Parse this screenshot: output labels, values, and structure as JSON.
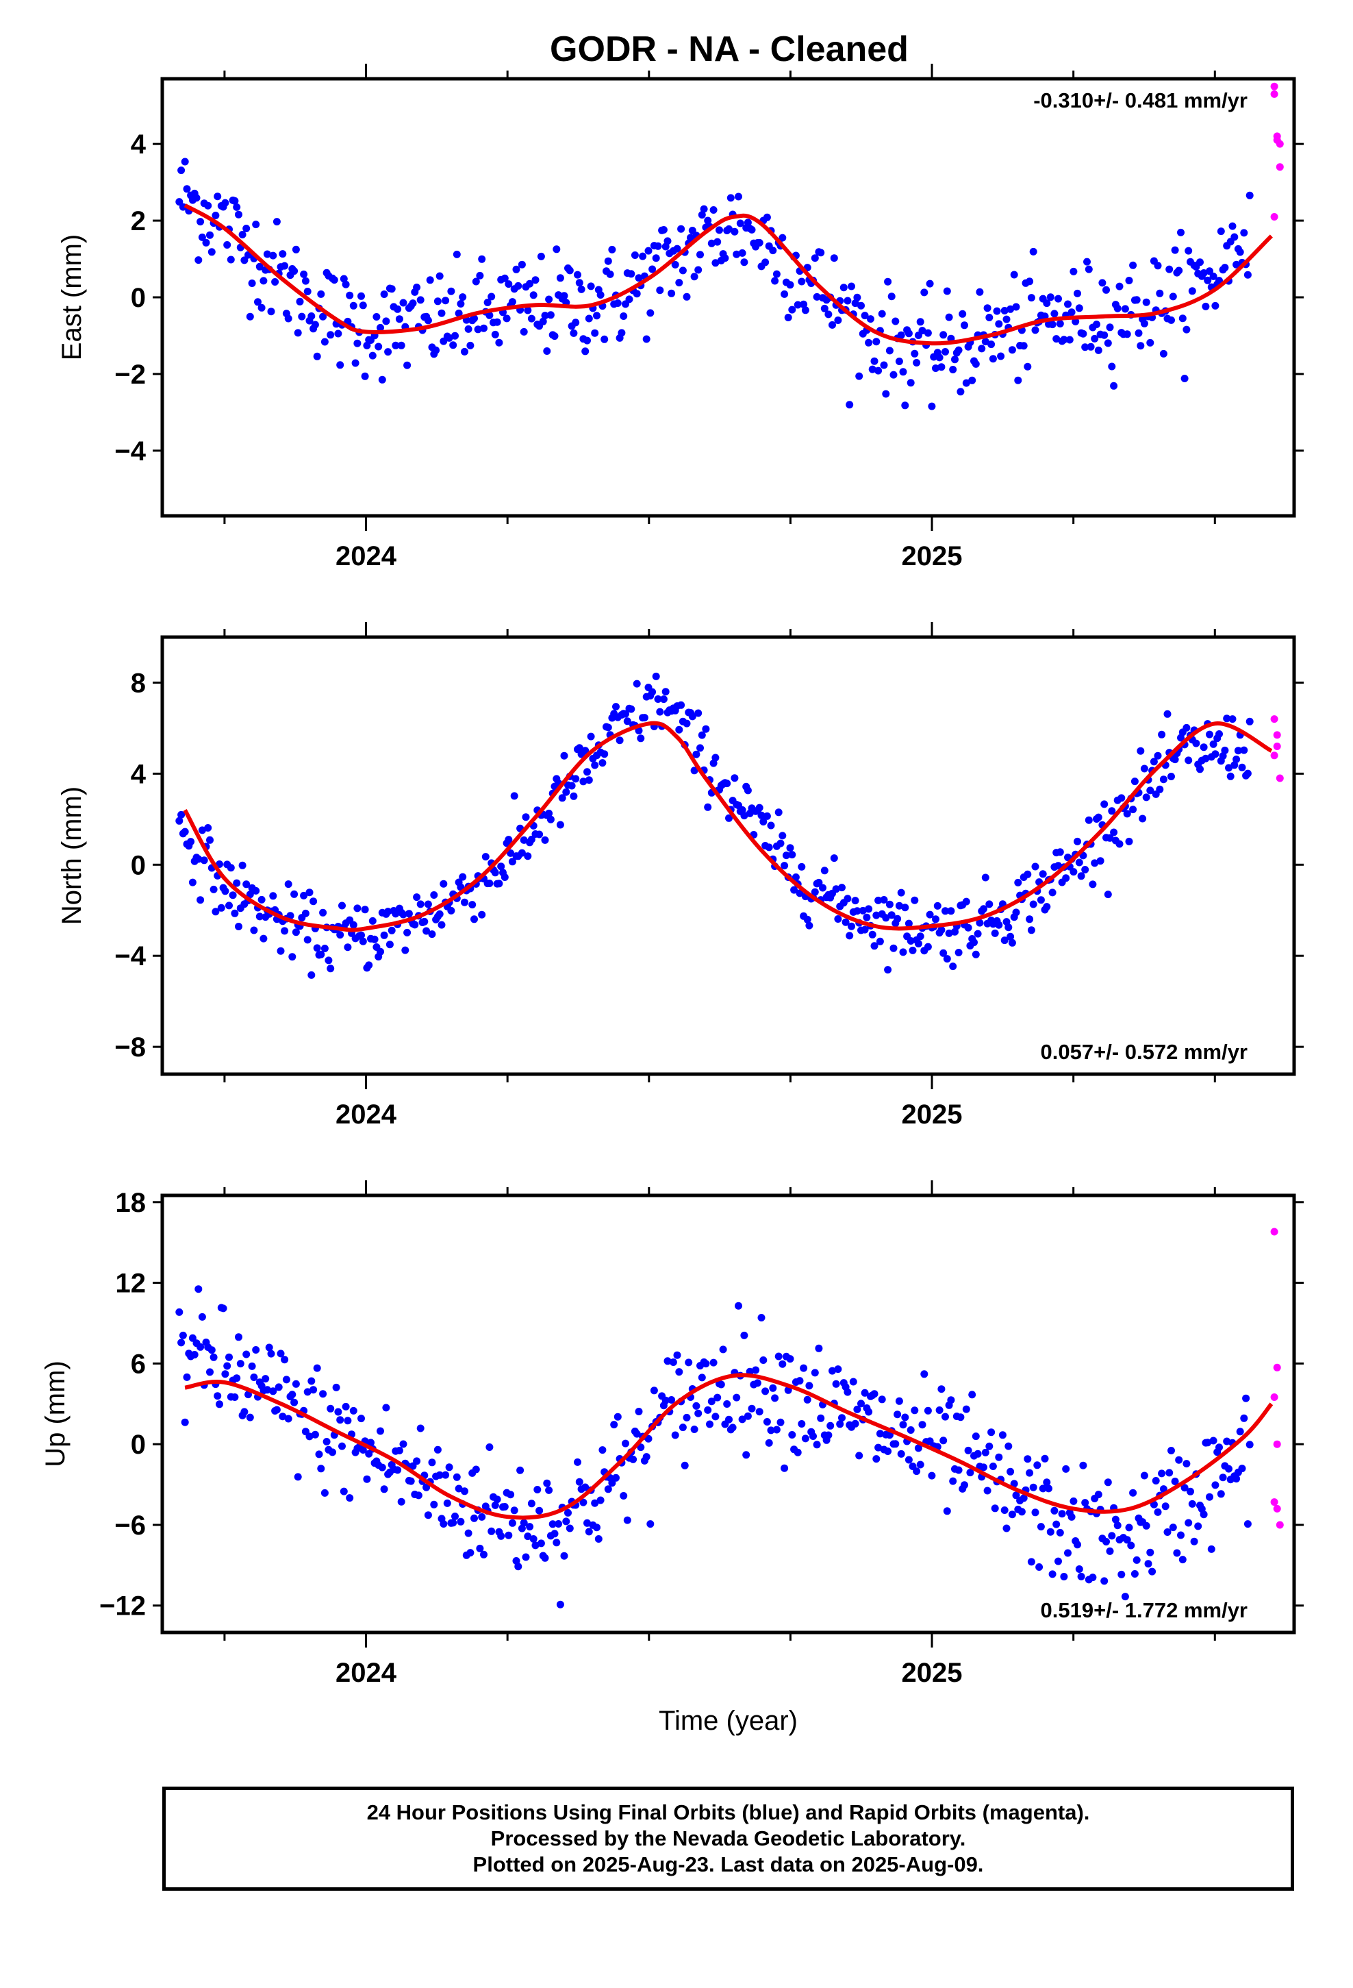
{
  "title": "GODR  - NA - Cleaned",
  "colors": {
    "final": "#0000ff",
    "rapid": "#ff00ff",
    "fit": "#ee0000",
    "frame": "#000000"
  },
  "footer": {
    "line1": "24 Hour Positions Using Final Orbits (blue) and Rapid Orbits (magenta).",
    "line2": "Processed by the Nevada Geodetic Laboratory.",
    "line3": "Plotted on 2025-Aug-23. Last data on 2025-Aug-09."
  },
  "chart_data": [
    {
      "type": "scatter",
      "component": "east",
      "ylabel": "East (mm)",
      "xlabel": "",
      "xlim": [
        2023.64,
        2025.64
      ],
      "ylim": [
        -5.7,
        5.7
      ],
      "yticks": [
        -4,
        -2,
        0,
        2,
        4
      ],
      "xticks": [
        2024,
        2025
      ],
      "rate_label": "-0.310+/- 0.481 mm/yr",
      "rate_label_position": "top-right",
      "fit": {
        "x": [
          2023.68,
          2023.75,
          2023.85,
          2023.95,
          2024.0,
          2024.1,
          2024.2,
          2024.3,
          2024.4,
          2024.5,
          2024.6,
          2024.65,
          2024.7,
          2024.8,
          2024.9,
          2025.0,
          2025.1,
          2025.2,
          2025.3,
          2025.4,
          2025.5,
          2025.6
        ],
        "y": [
          2.4,
          1.8,
          0.5,
          -0.6,
          -0.9,
          -0.8,
          -0.4,
          -0.2,
          -0.2,
          0.5,
          1.7,
          2.1,
          1.9,
          0.3,
          -0.9,
          -1.2,
          -1.0,
          -0.6,
          -0.5,
          -0.4,
          0.2,
          1.6
        ]
      },
      "final_trend": [
        [
          2023.66,
          2.8
        ],
        [
          2023.75,
          1.9
        ],
        [
          2023.85,
          0.5
        ],
        [
          2023.95,
          -0.6
        ],
        [
          2024.05,
          -0.8
        ],
        [
          2024.15,
          -0.6
        ],
        [
          2024.25,
          -0.3
        ],
        [
          2024.35,
          -0.2
        ],
        [
          2024.45,
          0.0
        ],
        [
          2024.55,
          1.0
        ],
        [
          2024.65,
          1.9
        ],
        [
          2024.72,
          1.3
        ],
        [
          2024.8,
          0.2
        ],
        [
          2024.9,
          -1.0
        ],
        [
          2025.0,
          -1.5
        ],
        [
          2025.1,
          -1.0
        ],
        [
          2025.2,
          -0.6
        ],
        [
          2025.3,
          -0.4
        ],
        [
          2025.4,
          -0.2
        ],
        [
          2025.5,
          0.6
        ],
        [
          2025.56,
          1.8
        ]
      ],
      "final_spread": 0.9,
      "rapid": {
        "x": [
          2025.605,
          2025.605,
          2025.61,
          2025.61,
          2025.615,
          2025.615,
          2025.605
        ],
        "y": [
          5.5,
          5.3,
          4.2,
          4.1,
          4.0,
          3.4,
          2.1
        ]
      }
    },
    {
      "type": "scatter",
      "component": "north",
      "ylabel": "North (mm)",
      "xlabel": "",
      "xlim": [
        2023.64,
        2025.64
      ],
      "ylim": [
        -9.2,
        10.0
      ],
      "yticks": [
        -8,
        -4,
        0,
        4,
        8
      ],
      "xticks": [
        2024,
        2025
      ],
      "rate_label": "0.057+/- 0.572 mm/yr",
      "rate_label_position": "bottom-right",
      "fit": {
        "x": [
          2023.68,
          2023.75,
          2023.85,
          2023.95,
          2024.0,
          2024.1,
          2024.2,
          2024.3,
          2024.4,
          2024.5,
          2024.55,
          2024.6,
          2024.7,
          2024.8,
          2024.9,
          2025.0,
          2025.1,
          2025.2,
          2025.3,
          2025.4,
          2025.5,
          2025.6
        ],
        "y": [
          2.4,
          -0.6,
          -2.3,
          -2.8,
          -2.8,
          -2.2,
          -0.6,
          2.1,
          5.0,
          6.2,
          5.6,
          3.8,
          0.6,
          -1.6,
          -2.7,
          -2.7,
          -2.2,
          -0.8,
          1.5,
          4.3,
          6.2,
          5.0
        ]
      },
      "final_trend": [
        [
          2023.66,
          2.0
        ],
        [
          2023.75,
          -1.0
        ],
        [
          2023.85,
          -2.5
        ],
        [
          2023.95,
          -3.3
        ],
        [
          2024.05,
          -2.8
        ],
        [
          2024.15,
          -1.6
        ],
        [
          2024.25,
          0.2
        ],
        [
          2024.35,
          3.2
        ],
        [
          2024.45,
          6.0
        ],
        [
          2024.52,
          7.3
        ],
        [
          2024.58,
          5.3
        ],
        [
          2024.65,
          3.0
        ],
        [
          2024.75,
          -0.2
        ],
        [
          2024.85,
          -1.9
        ],
        [
          2024.95,
          -2.7
        ],
        [
          2025.05,
          -2.8
        ],
        [
          2025.15,
          -1.8
        ],
        [
          2025.25,
          0.0
        ],
        [
          2025.35,
          2.8
        ],
        [
          2025.45,
          5.0
        ],
        [
          2025.56,
          5.2
        ]
      ],
      "final_spread": 1.0,
      "rapid": {
        "x": [
          2025.605,
          2025.61,
          2025.61,
          2025.605,
          2025.615
        ],
        "y": [
          6.4,
          5.7,
          5.2,
          4.8,
          3.8
        ]
      }
    },
    {
      "type": "scatter",
      "component": "up",
      "ylabel": "Up (mm)",
      "xlabel": "Time (year)",
      "xlim": [
        2023.64,
        2025.64
      ],
      "ylim": [
        -14.0,
        18.5
      ],
      "yticks": [
        -12,
        -6,
        0,
        6,
        12,
        18
      ],
      "xticks": [
        2024,
        2025
      ],
      "rate_label": "0.519+/- 1.772 mm/yr",
      "rate_label_position": "bottom-right",
      "fit": {
        "x": [
          2023.68,
          2023.75,
          2023.85,
          2023.95,
          2024.05,
          2024.15,
          2024.25,
          2024.35,
          2024.45,
          2024.55,
          2024.65,
          2024.75,
          2024.85,
          2024.95,
          2025.05,
          2025.15,
          2025.25,
          2025.35,
          2025.45,
          2025.55,
          2025.6
        ],
        "y": [
          4.2,
          4.6,
          3.0,
          0.9,
          -1.2,
          -3.9,
          -5.4,
          -4.8,
          -1.3,
          3.1,
          5.1,
          4.3,
          2.4,
          0.6,
          -1.3,
          -3.4,
          -4.8,
          -4.8,
          -2.7,
          0.5,
          3.0
        ]
      },
      "final_trend": [
        [
          2023.66,
          7.0
        ],
        [
          2023.75,
          5.5
        ],
        [
          2023.85,
          3.0
        ],
        [
          2023.95,
          0.5
        ],
        [
          2024.05,
          -1.5
        ],
        [
          2024.15,
          -4.0
        ],
        [
          2024.25,
          -5.5
        ],
        [
          2024.35,
          -5.5
        ],
        [
          2024.45,
          -2.0
        ],
        [
          2024.55,
          3.0
        ],
        [
          2024.65,
          5.0
        ],
        [
          2024.75,
          4.0
        ],
        [
          2024.85,
          2.0
        ],
        [
          2024.95,
          0.5
        ],
        [
          2025.05,
          -1.0
        ],
        [
          2025.15,
          -4.0
        ],
        [
          2025.25,
          -6.5
        ],
        [
          2025.35,
          -7.0
        ],
        [
          2025.45,
          -4.0
        ],
        [
          2025.56,
          -1.0
        ]
      ],
      "final_spread": 3.0,
      "rapid": {
        "x": [
          2025.605,
          2025.61,
          2025.605,
          2025.61,
          2025.605,
          2025.61,
          2025.615
        ],
        "y": [
          15.8,
          5.7,
          3.5,
          0.0,
          -4.3,
          -4.8,
          -6.0
        ]
      }
    }
  ]
}
